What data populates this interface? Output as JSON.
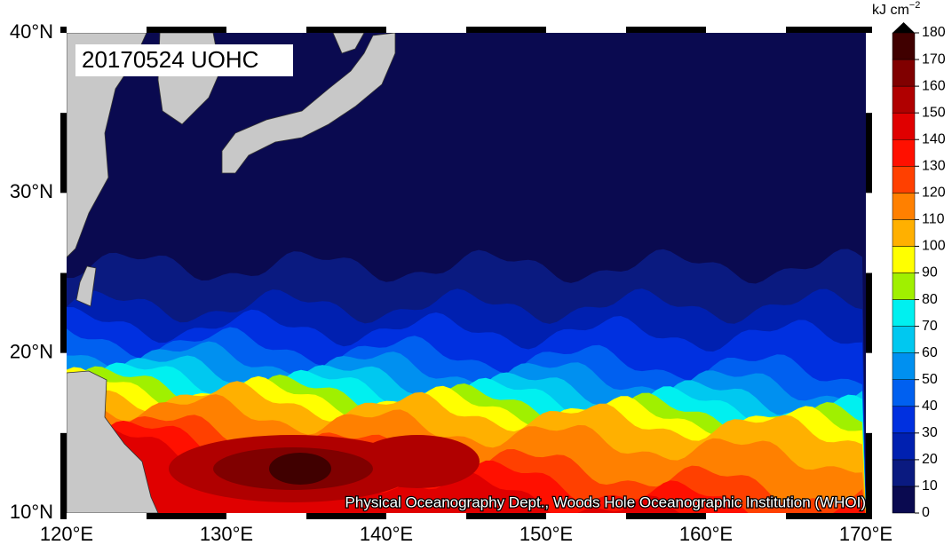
{
  "header": {
    "title": "20170524 UOHC"
  },
  "credit": "Physical Oceanography Dept., Woods Hole Oceanographic Institution (WHOI)",
  "axes": {
    "x_labels": [
      "120°E",
      "130°E",
      "140°E",
      "150°E",
      "160°E",
      "170°E"
    ],
    "y_labels": [
      "10°N",
      "20°N",
      "30°N",
      "40°N"
    ]
  },
  "colorbar": {
    "unit": "kJ cm",
    "unit_exponent": "−2",
    "labels": [
      0,
      10,
      20,
      30,
      40,
      50,
      60,
      70,
      80,
      90,
      100,
      110,
      120,
      130,
      140,
      150,
      160,
      170,
      180
    ],
    "colors": [
      "#0a0a50",
      "#0a1a80",
      "#0020b0",
      "#0030e0",
      "#0060f0",
      "#0090f0",
      "#00c8f0",
      "#00f0f0",
      "#a0f000",
      "#ffff00",
      "#ffb000",
      "#ff8000",
      "#ff4000",
      "#ff1000",
      "#e00000",
      "#b00000",
      "#800000",
      "#400000",
      "#000000"
    ]
  }
}
